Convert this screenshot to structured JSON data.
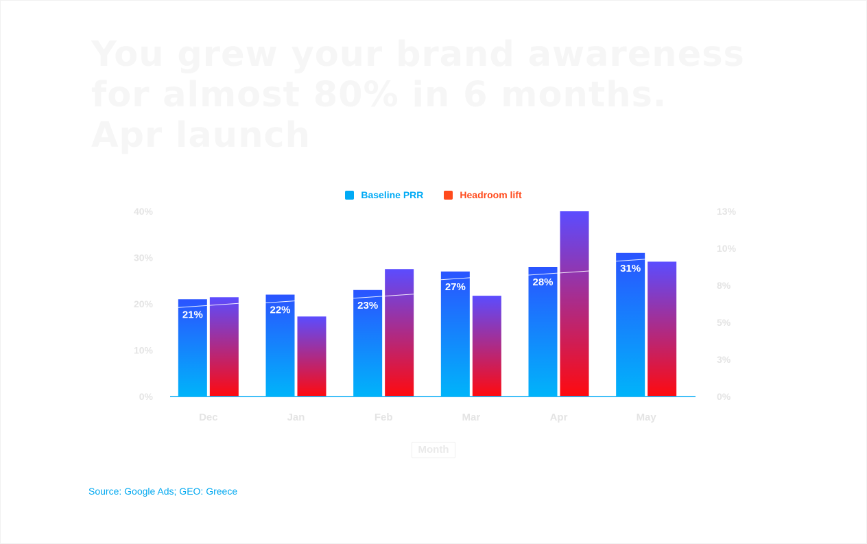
{
  "headline": [
    "You grew your brand awareness",
    "for almost 80% in 6 months.",
    "Apr launch"
  ],
  "source": "Source: Google Ads; GEO: Greece",
  "colors": {
    "baseline": "#00aaf5",
    "headroom": "#ff4a1c",
    "axis_line": "#00aaf5",
    "faint_text": "#e4e4e4"
  },
  "chart_data": {
    "type": "bar",
    "categories": [
      "Dec",
      "Jan",
      "Feb",
      "Mar",
      "Apr",
      "May"
    ],
    "xlabel": "Month",
    "legend_position": "top-center",
    "grid": false,
    "series": [
      {
        "name": "Baseline PRR",
        "axis": "left",
        "values": [
          21,
          22,
          23,
          27,
          28,
          31
        ],
        "labels": [
          "21%",
          "22%",
          "23%",
          "27%",
          "28%",
          "31%"
        ]
      },
      {
        "name": "Headroom lift",
        "axis": "right",
        "values": [
          6.7,
          5.4,
          8.6,
          6.8,
          12.5,
          9.1
        ]
      }
    ],
    "y_left": {
      "ticks": [
        "0%",
        "10%",
        "20%",
        "30%",
        "40%"
      ],
      "tick_values": [
        0,
        10,
        20,
        30,
        40
      ],
      "range": [
        0,
        40
      ]
    },
    "y_right": {
      "ticks": [
        "0%",
        "3%",
        "5%",
        "8%",
        "10%",
        "13%"
      ],
      "tick_values": [
        0,
        2.5,
        5,
        7.5,
        10,
        12.5
      ],
      "range": [
        0,
        12.5
      ]
    }
  }
}
